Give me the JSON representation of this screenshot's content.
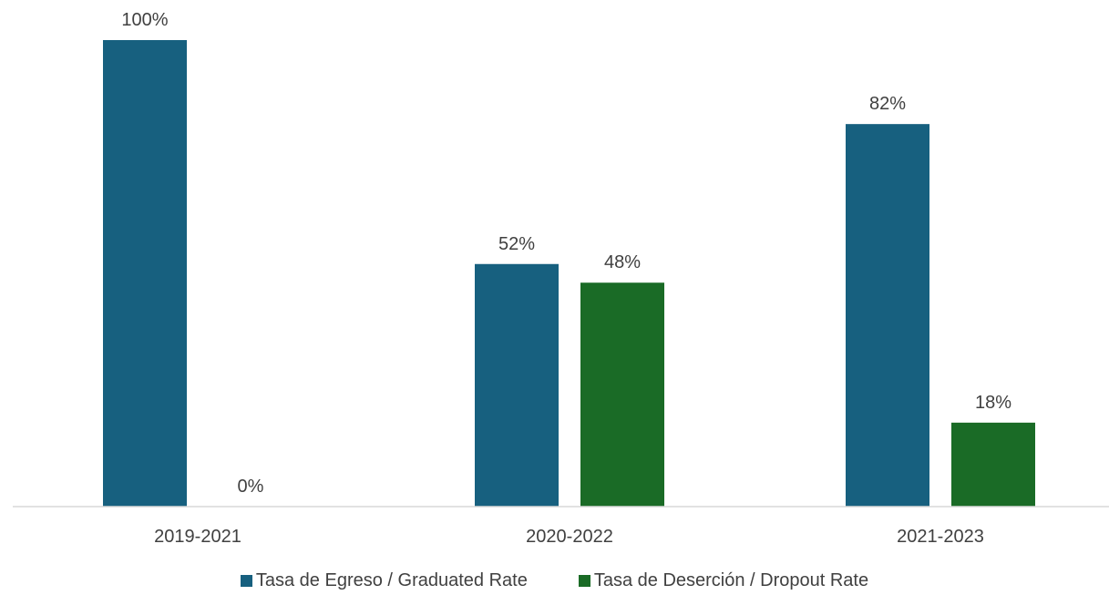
{
  "chart_data": {
    "type": "bar",
    "categories": [
      "2019-2021",
      "2020-2022",
      "2021-2023"
    ],
    "series": [
      {
        "name": "Tasa de Egreso / Graduated Rate",
        "values": [
          100,
          52,
          82
        ],
        "labels": [
          "100%",
          "52%",
          "82%"
        ],
        "color": "#17607f"
      },
      {
        "name": "Tasa de Deserción / Dropout Rate",
        "values": [
          0,
          48,
          18
        ],
        "labels": [
          "0%",
          "48%",
          "18%"
        ],
        "color": "#1a6b26"
      }
    ],
    "ylim": [
      0,
      100
    ],
    "grid": false,
    "legend_position": "bottom",
    "axis_color": "#d9d9d9",
    "label_color": "#404040"
  }
}
